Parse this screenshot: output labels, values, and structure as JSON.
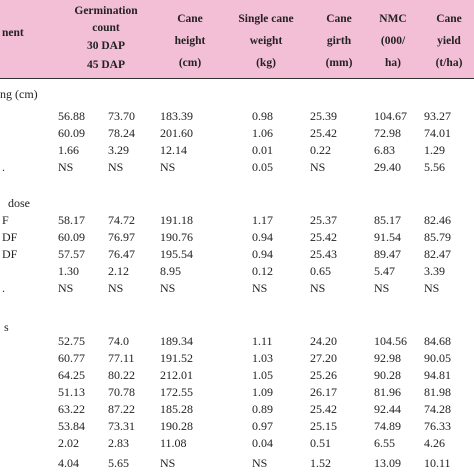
{
  "header": {
    "treatment": "nent",
    "germination": [
      "Germination",
      "count",
      "30 DAP",
      "45 DAP"
    ],
    "cane_height": [
      "Cane",
      "height",
      "(cm)"
    ],
    "single_cane_weight": [
      "Single cane",
      "weight",
      "(kg)"
    ],
    "cane_girth": [
      "Cane",
      "girth",
      "(mm)"
    ],
    "nmc": [
      "NMC",
      "(000/",
      "ha)"
    ],
    "cane_yield": [
      "Cane",
      "yield",
      "(t/ha)"
    ]
  },
  "sections": [
    {
      "title": "ng (cm)",
      "rows": [
        {
          "label": "",
          "c1": "56.88",
          "c2": "73.70",
          "c3": "183.39",
          "c4": "0.98",
          "c5": "25.39",
          "c6": "104.67",
          "c7": "93.27"
        },
        {
          "label": "",
          "c1": "60.09",
          "c2": "78.24",
          "c3": "201.60",
          "c4": "1.06",
          "c5": "25.42",
          "c6": "72.98",
          "c7": "74.01"
        },
        {
          "label": "",
          "c1": "1.66",
          "c2": "3.29",
          "c3": "12.14",
          "c4": "0.01",
          "c5": "0.22",
          "c6": "6.83",
          "c7": "1.29"
        },
        {
          "label": ".",
          "c1": "NS",
          "c2": "NS",
          "c3": "NS",
          "c4": "0.05",
          "c5": "NS",
          "c6": "29.40",
          "c7": "5.56"
        }
      ]
    },
    {
      "title": "dose",
      "rows": [
        {
          "label": "F",
          "c1": "58.17",
          "c2": "74.72",
          "c3": "191.18",
          "c4": "1.17",
          "c5": "25.37",
          "c6": "85.17",
          "c7": "82.46"
        },
        {
          "label": "DF",
          "c1": "60.09",
          "c2": "76.97",
          "c3": "190.76",
          "c4": "0.94",
          "c5": "25.42",
          "c6": "91.54",
          "c7": "85.79"
        },
        {
          "label": "DF",
          "c1": "57.57",
          "c2": "76.47",
          "c3": "195.54",
          "c4": "0.94",
          "c5": "25.43",
          "c6": "89.47",
          "c7": "82.47"
        },
        {
          "label": "",
          "c1": "1.30",
          "c2": "2.12",
          "c3": "8.95",
          "c4": "0.12",
          "c5": "0.65",
          "c6": "5.47",
          "c7": "3.39"
        },
        {
          "label": ".",
          "c1": "NS",
          "c2": "NS",
          "c3": "NS",
          "c4": "NS",
          "c5": "NS",
          "c6": "NS",
          "c7": "NS"
        }
      ]
    },
    {
      "title": "s",
      "rows": [
        {
          "label": "",
          "c1": "52.75",
          "c2": "74.0",
          "c3": "189.34",
          "c4": "1.11",
          "c5": "24.20",
          "c6": "104.56",
          "c7": "84.68"
        },
        {
          "label": "",
          "c1": "60.77",
          "c2": "77.11",
          "c3": "191.52",
          "c4": "1.03",
          "c5": "27.20",
          "c6": "92.98",
          "c7": "90.05"
        },
        {
          "label": "",
          "c1": "64.25",
          "c2": "80.22",
          "c3": "212.01",
          "c4": "1.05",
          "c5": "25.26",
          "c6": "90.28",
          "c7": "94.81"
        },
        {
          "label": "",
          "c1": "51.13",
          "c2": "70.78",
          "c3": "172.55",
          "c4": "1.09",
          "c5": "26.17",
          "c6": "81.96",
          "c7": "81.98"
        },
        {
          "label": "",
          "c1": "63.22",
          "c2": "87.22",
          "c3": "185.28",
          "c4": "0.89",
          "c5": "25.42",
          "c6": "92.44",
          "c7": "74.28"
        },
        {
          "label": "",
          "c1": "53.84",
          "c2": "73.31",
          "c3": "190.28",
          "c4": "0.97",
          "c5": "25.15",
          "c6": "74.89",
          "c7": "76.33"
        },
        {
          "label": "",
          "c1": "2.02",
          "c2": "2.83",
          "c3": "11.08",
          "c4": "0.04",
          "c5": "0.51",
          "c6": "6.55",
          "c7": "4.26"
        },
        {
          "label": "",
          "c1": "4.04",
          "c2": "5.65",
          "c3": "NS",
          "c4": "NS",
          "c5": "1.52",
          "c6": "13.09",
          "c7": "10.11"
        }
      ]
    }
  ]
}
